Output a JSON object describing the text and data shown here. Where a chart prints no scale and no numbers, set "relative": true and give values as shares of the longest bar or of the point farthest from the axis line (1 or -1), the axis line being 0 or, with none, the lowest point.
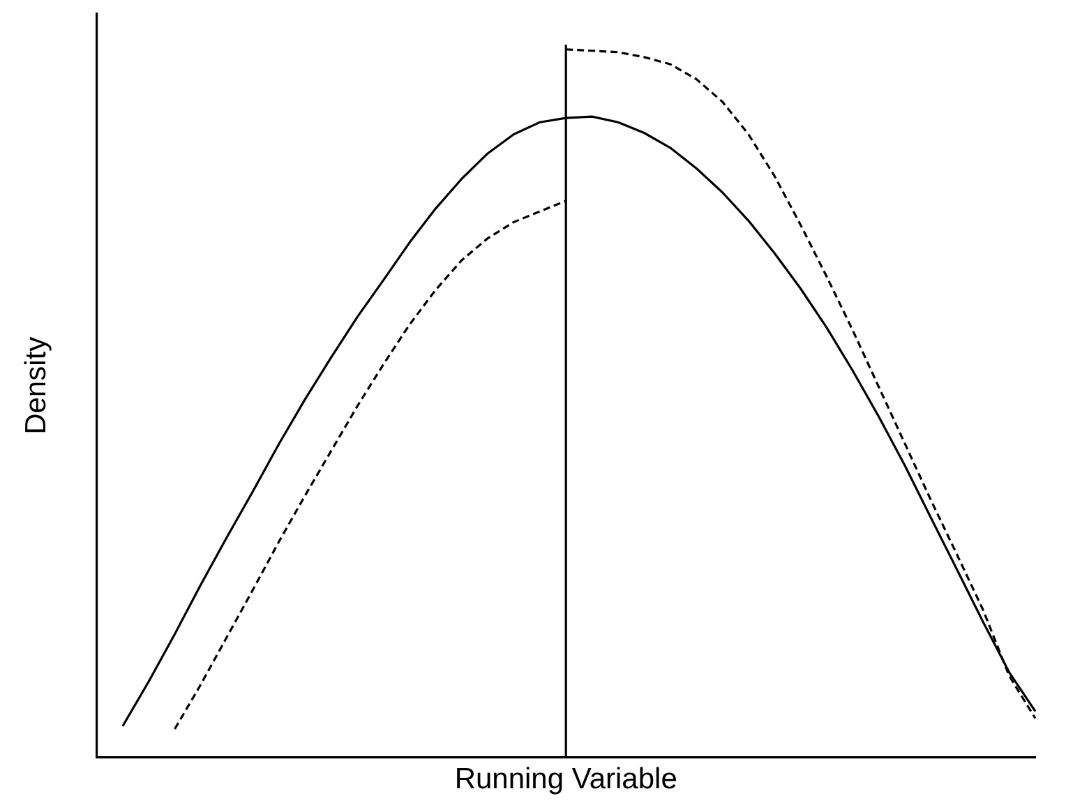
{
  "chart_data": {
    "type": "line",
    "relative": true,
    "xlabel": "Running Variable",
    "ylabel": "Density",
    "categories": [
      null,
      null,
      null,
      null,
      null,
      null,
      null,
      null,
      null,
      null,
      null,
      null,
      null,
      null,
      null,
      null,
      null,
      null,
      null,
      null,
      null,
      null,
      null,
      null,
      null,
      null,
      null,
      null,
      null,
      null,
      null,
      null,
      null,
      null,
      null,
      null,
      null
    ],
    "series": [
      {
        "color": "#000000",
        "line_style": "solid",
        "values": [
          null,
          0.044,
          0.107,
          0.174,
          0.244,
          0.311,
          0.376,
          0.443,
          0.506,
          0.565,
          0.622,
          0.674,
          0.727,
          0.775,
          0.817,
          0.853,
          0.88,
          0.897,
          0.903,
          0.905,
          0.897,
          0.882,
          0.861,
          0.832,
          0.798,
          0.758,
          0.712,
          0.662,
          0.607,
          0.546,
          0.481,
          0.412,
          0.338,
          0.265,
          0.191,
          0.12,
          0.065
        ]
      },
      {
        "color": "#000000",
        "line_style": "dashed",
        "values": [
          null,
          null,
          null,
          0.04,
          0.103,
          0.17,
          0.237,
          0.305,
          0.37,
          0.433,
          0.496,
          0.555,
          0.611,
          0.66,
          0.702,
          0.733,
          0.756,
          0.771,
          0.786,
          null,
          null,
          null,
          null,
          null,
          null,
          null,
          null,
          null,
          null,
          null,
          null,
          null,
          null,
          null,
          null,
          null,
          null
        ]
      },
      {
        "color": "#000000",
        "line_style": "dashed",
        "values": [
          null,
          null,
          null,
          null,
          null,
          null,
          null,
          null,
          null,
          null,
          null,
          null,
          null,
          null,
          null,
          null,
          null,
          null,
          1.0,
          0.998,
          0.996,
          0.989,
          0.979,
          0.958,
          0.926,
          0.88,
          0.821,
          0.752,
          0.679,
          0.603,
          0.523,
          0.443,
          0.363,
          0.286,
          0.208,
          0.115,
          0.055
        ]
      }
    ]
  }
}
